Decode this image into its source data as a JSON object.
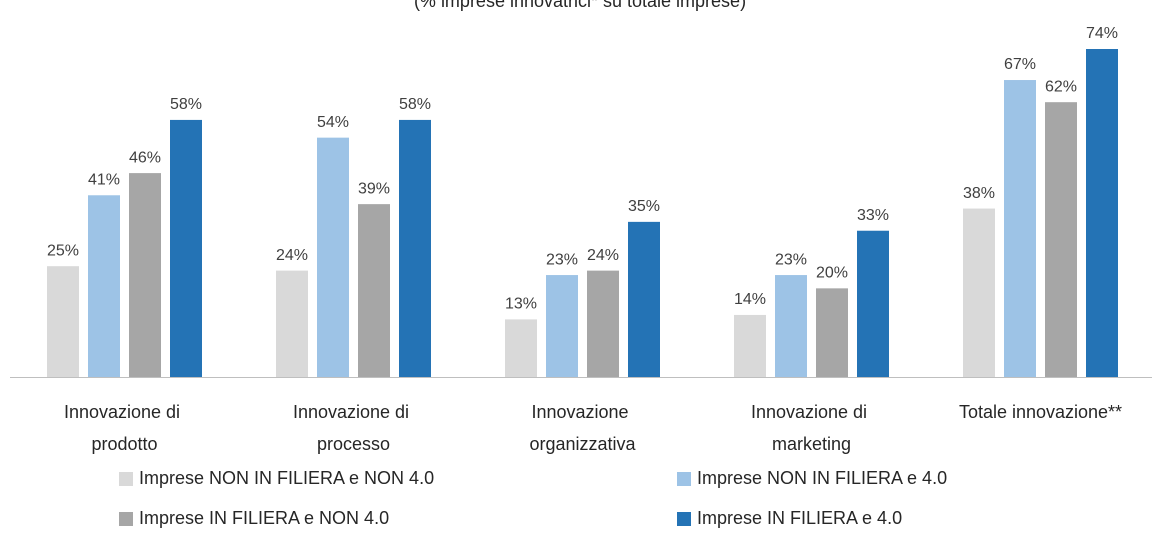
{
  "chart_data": {
    "type": "bar",
    "subtitle": "(% imprese innovatrici* su totale imprese)",
    "categories": [
      "Innovazione di prodotto",
      "Innovazione di processo",
      "Innovazione organizzativa",
      "Innovazione di marketing",
      "Totale innovazione**"
    ],
    "series": [
      {
        "name": "Imprese NON IN FILIERA e NON 4.0",
        "color": "#d9d9d9",
        "values": [
          25,
          24,
          13,
          14,
          38
        ],
        "value_labels": [
          "25%",
          "24%",
          "13%",
          "14%",
          "38%"
        ]
      },
      {
        "name": "Imprese NON IN FILIERA e 4.0",
        "color": "#9dc3e6",
        "values": [
          41,
          54,
          23,
          23,
          67
        ],
        "value_labels": [
          "41%",
          "54%",
          "23%",
          "23%",
          "67%"
        ]
      },
      {
        "name": "Imprese IN FILIERA e NON 4.0",
        "color": "#a6a6a6",
        "values": [
          46,
          39,
          24,
          20,
          62
        ],
        "value_labels": [
          "46%",
          "39%",
          "24%",
          "20%",
          "62%"
        ]
      },
      {
        "name": "Imprese IN FILIERA e 4.0",
        "color": "#2473b5",
        "values": [
          58,
          58,
          35,
          33,
          74
        ],
        "value_labels": [
          "58%",
          "58%",
          "35%",
          "33%",
          "74%"
        ]
      }
    ]
  }
}
